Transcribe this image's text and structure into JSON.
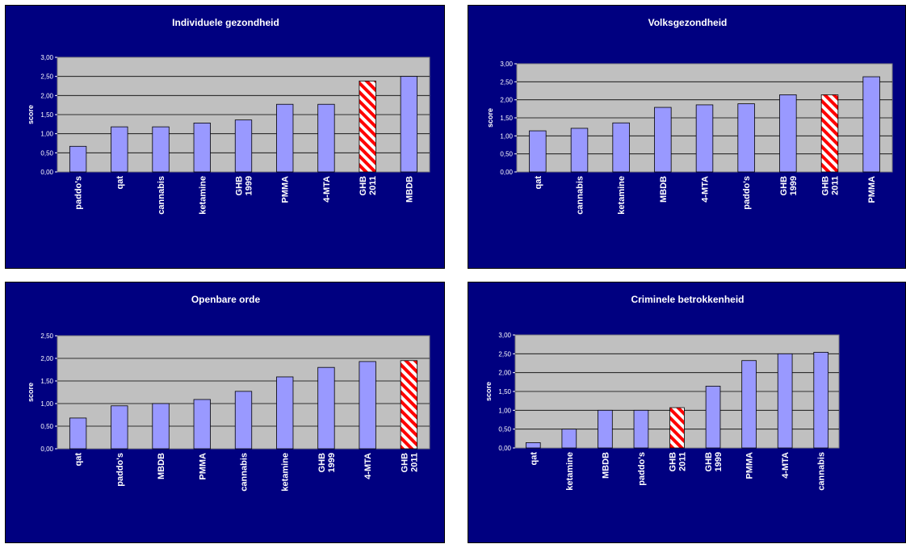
{
  "colors": {
    "panel_bg": "#000080",
    "plot_bg": "#c0c0c0",
    "bar": "#9999ff",
    "highlight_stripe": "#ff0000"
  },
  "chart_data": [
    {
      "type": "bar",
      "title": "Individuele gezondheid",
      "ylabel": "score",
      "ylim": [
        0,
        3
      ],
      "yticks": [
        "0,00",
        "0,50",
        "1,00",
        "1,50",
        "2,00",
        "2,50",
        "3,00"
      ],
      "categories": [
        [
          "paddo's"
        ],
        [
          "qat"
        ],
        [
          "cannabis"
        ],
        [
          "ketamine"
        ],
        [
          "GHB",
          "1999"
        ],
        [
          "PMMA"
        ],
        [
          "4-MTA"
        ],
        [
          "GHB",
          "2011"
        ],
        [
          "MBDB"
        ]
      ],
      "values": [
        0.67,
        1.18,
        1.18,
        1.28,
        1.36,
        1.77,
        1.77,
        2.38,
        2.5
      ],
      "highlight": [
        7
      ],
      "grid": true
    },
    {
      "type": "bar",
      "title": "Volksgezondheid",
      "ylabel": "score",
      "ylim": [
        0,
        3
      ],
      "yticks": [
        "0,00",
        "0,50",
        "1,00",
        "1,50",
        "2,00",
        "2,50",
        "3,00"
      ],
      "categories": [
        [
          "qat"
        ],
        [
          "cannabis"
        ],
        [
          "ketamine"
        ],
        [
          "MBDB"
        ],
        [
          "4-MTA"
        ],
        [
          "paddo's"
        ],
        [
          "GHB",
          "1999"
        ],
        [
          "GHB",
          "2011"
        ],
        [
          "PMMA"
        ]
      ],
      "values": [
        1.14,
        1.21,
        1.36,
        1.79,
        1.86,
        1.89,
        2.14,
        2.14,
        2.64
      ],
      "highlight": [
        7
      ],
      "grid": true
    },
    {
      "type": "bar",
      "title": "Openbare orde",
      "ylabel": "score",
      "ylim": [
        0,
        2.5
      ],
      "yticks": [
        "0,00",
        "0,50",
        "1,00",
        "1,50",
        "2,00",
        "2,50"
      ],
      "categories": [
        [
          "qat"
        ],
        [
          "paddo's"
        ],
        [
          "MBDB"
        ],
        [
          "PMMA"
        ],
        [
          "cannabis"
        ],
        [
          "ketamine"
        ],
        [
          "GHB",
          "1999"
        ],
        [
          "4-MTA"
        ],
        [
          "GHB",
          "2011"
        ]
      ],
      "values": [
        0.68,
        0.95,
        1.0,
        1.09,
        1.27,
        1.59,
        1.8,
        1.93,
        1.95
      ],
      "highlight": [
        8
      ],
      "grid": true
    },
    {
      "type": "bar",
      "title": "Criminele betrokkenheid",
      "ylabel": "score",
      "ylim": [
        0,
        3
      ],
      "yticks": [
        "0,00",
        "0,50",
        "1,00",
        "1,50",
        "2,00",
        "2,50",
        "3,00"
      ],
      "categories": [
        [
          "qat"
        ],
        [
          "ketamine"
        ],
        [
          "MBDB"
        ],
        [
          "paddo's"
        ],
        [
          "GHB",
          "2011"
        ],
        [
          "GHB",
          "1999"
        ],
        [
          "PMMA"
        ],
        [
          "4-MTA"
        ],
        [
          "cannabis"
        ]
      ],
      "values": [
        0.14,
        0.5,
        1.0,
        1.0,
        1.07,
        1.64,
        2.32,
        2.5,
        2.54
      ],
      "highlight": [
        4
      ],
      "grid": true
    }
  ]
}
